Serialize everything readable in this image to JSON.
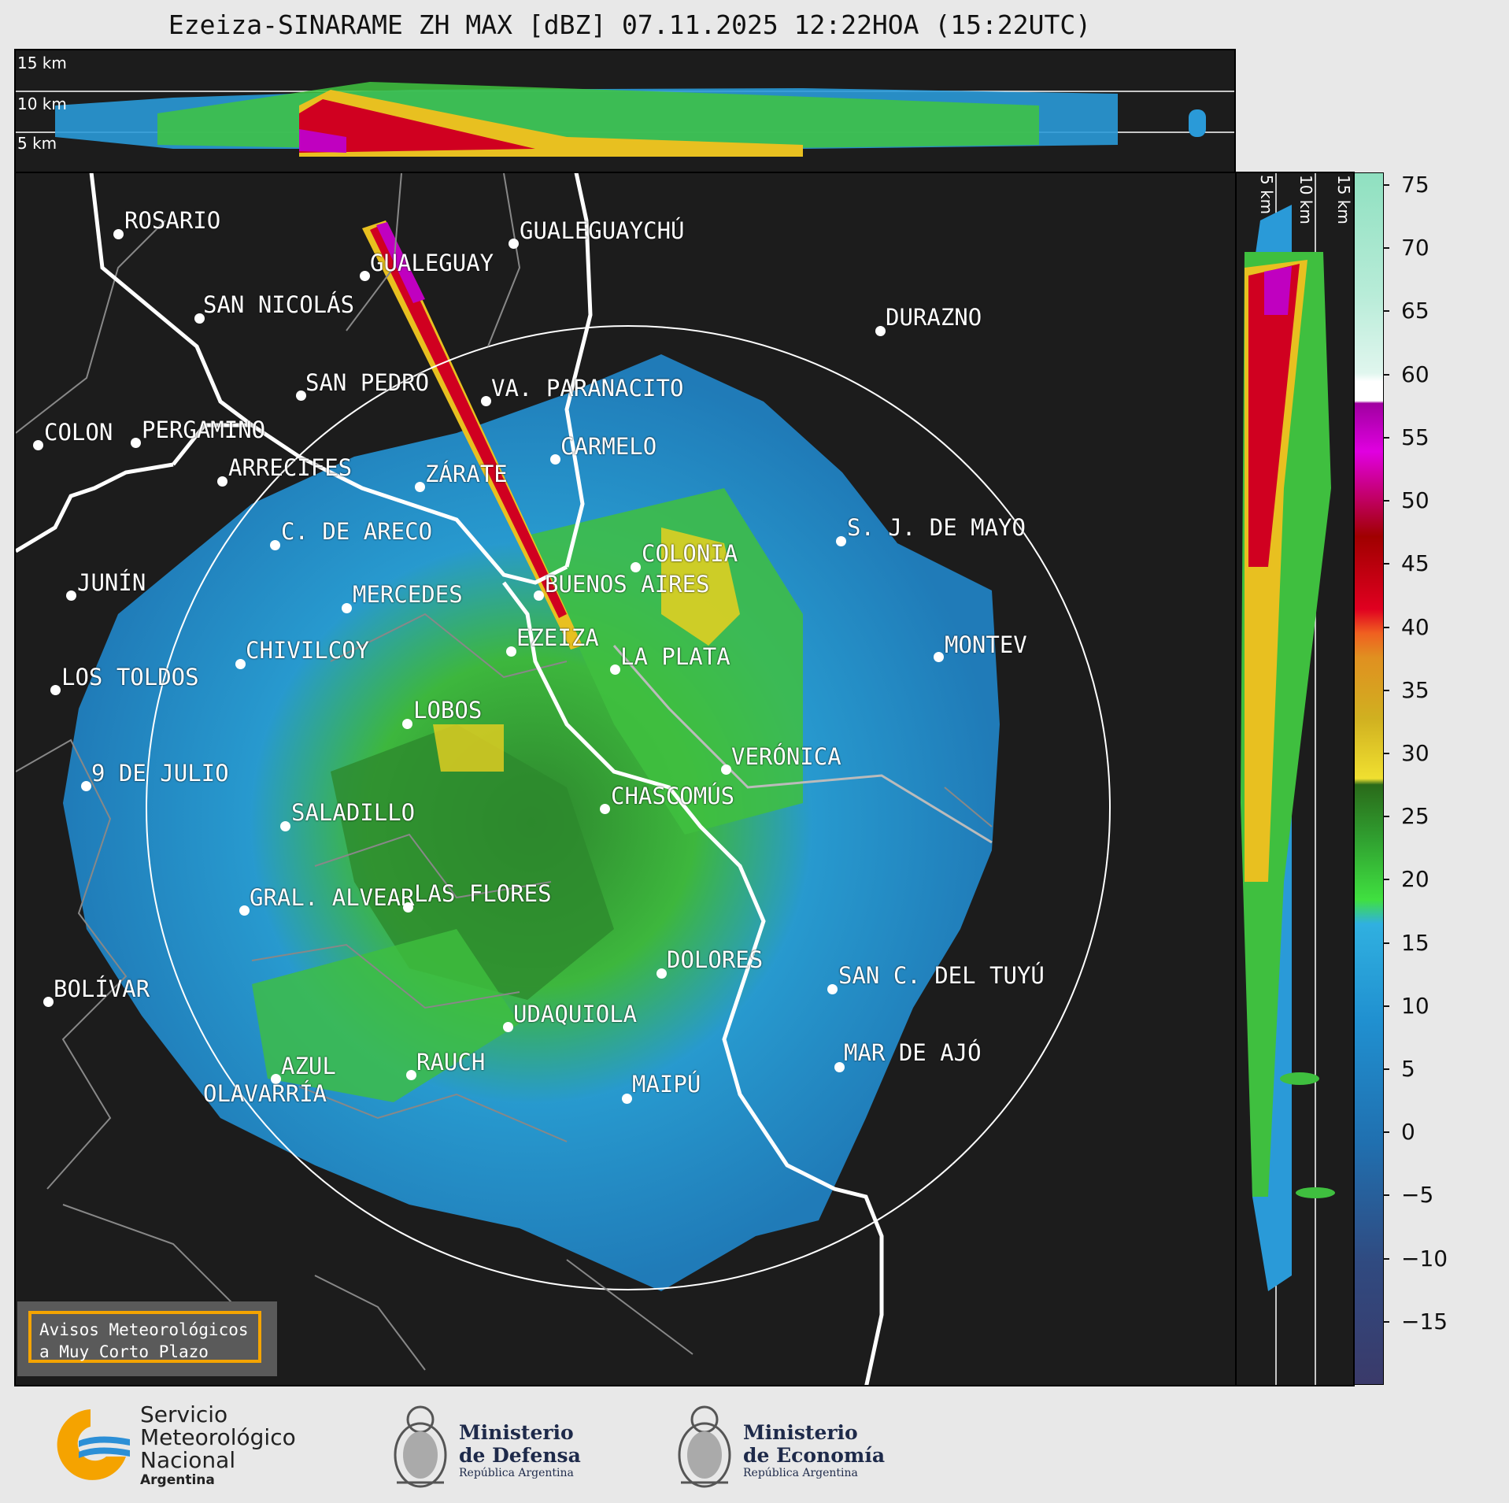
{
  "title": "Ezeiza-SINARAME ZH MAX [dBZ] 07.11.2025 12:22HOA (15:22UTC)",
  "top_panel": {
    "altitude_labels": [
      "15 km",
      "10 km",
      "5 km"
    ]
  },
  "side_panel": {
    "altitude_labels": [
      "5 km",
      "10 km",
      "15 km"
    ]
  },
  "colorbar": {
    "unit": "dBZ",
    "ticks": [
      "75",
      "70",
      "65",
      "60",
      "55",
      "50",
      "45",
      "40",
      "35",
      "30",
      "25",
      "20",
      "15",
      "10",
      "5",
      "0",
      "−5",
      "−10",
      "−15"
    ],
    "range": [
      -20,
      76
    ],
    "bands": [
      {
        "from": 60,
        "to": 76,
        "color": "#8fe0c0"
      },
      {
        "from": 58,
        "to": 60,
        "color": "#ffffff"
      },
      {
        "from": 50,
        "to": 58,
        "color": "#c000c0"
      },
      {
        "from": 42,
        "to": 50,
        "color": "#d00020"
      },
      {
        "from": 30,
        "to": 42,
        "color": "#e8c020"
      },
      {
        "from": 18,
        "to": 30,
        "color": "#40c040"
      },
      {
        "from": -20,
        "to": 18,
        "color": "#2080c0"
      }
    ]
  },
  "cities": [
    {
      "name": "ROSARIO"
    },
    {
      "name": "GUALEGUAYCHÚ"
    },
    {
      "name": "GUALEGUAY"
    },
    {
      "name": "SAN NICOLÁS"
    },
    {
      "name": "DURAZNO"
    },
    {
      "name": "SAN PEDRO"
    },
    {
      "name": "VA. PARANACITO"
    },
    {
      "name": "COLON"
    },
    {
      "name": "PERGAMINO"
    },
    {
      "name": "CARMELO"
    },
    {
      "name": "ARRECIFES"
    },
    {
      "name": "ZÁRATE"
    },
    {
      "name": "S. J. DE MAYO"
    },
    {
      "name": "C. DE ARECO"
    },
    {
      "name": "COLONIA"
    },
    {
      "name": "JUNÍN"
    },
    {
      "name": "BUENOS AIRES"
    },
    {
      "name": "MERCEDES"
    },
    {
      "name": "MONTEV"
    },
    {
      "name": "EZEIZA"
    },
    {
      "name": "CHIVILCOY"
    },
    {
      "name": "LA PLATA"
    },
    {
      "name": "LOS TOLDOS"
    },
    {
      "name": "LOBOS"
    },
    {
      "name": "VERÓNICA"
    },
    {
      "name": "9 DE JULIO"
    },
    {
      "name": "CHASCOMÚS"
    },
    {
      "name": "SALADILLO"
    },
    {
      "name": "GRAL. ALVEAR"
    },
    {
      "name": "LAS FLORES"
    },
    {
      "name": "BOLÍVAR"
    },
    {
      "name": "DOLORES"
    },
    {
      "name": "SAN C. DEL TUYÚ"
    },
    {
      "name": "UDAQUIOLA"
    },
    {
      "name": "MAR DE AJÓ"
    },
    {
      "name": "AZUL"
    },
    {
      "name": "RAUCH"
    },
    {
      "name": "OLAVARRÍA"
    },
    {
      "name": "MAIPÚ"
    }
  ],
  "badge": {
    "line1": "Avisos Meteorológicos",
    "line2": "a Muy Corto Plazo"
  },
  "logos": {
    "smn": {
      "line1": "Servicio",
      "line2": "Meteorológico",
      "line3": "Nacional",
      "line4": "Argentina"
    },
    "defensa": {
      "line1": "Ministerio",
      "line2": "de Defensa",
      "line3": "República Argentina"
    },
    "economia": {
      "line1": "Ministerio",
      "line2": "de Economía",
      "line3": "República Argentina"
    }
  },
  "colors": {
    "background": "#1c1c1c",
    "page": "#e8e8e8",
    "badge_border": "#f4a400",
    "smn_orange": "#f5a300",
    "smn_blue": "#2c8fd6"
  }
}
